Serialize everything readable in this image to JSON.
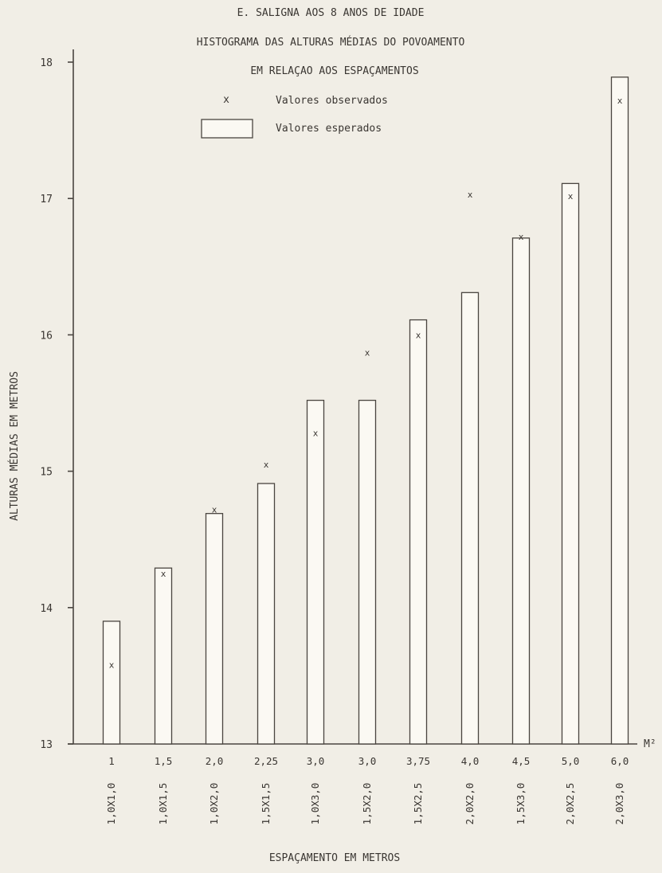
{
  "chart_data": {
    "type": "bar",
    "title_lines": [
      "E. SALIGNA AOS 8 ANOS DE IDADE",
      "HISTOGRAMA DAS ALTURAS MÉDIAS DO POVOAMENTO",
      "EM RELAÇAO AOS ESPAÇAMENTOS"
    ],
    "legend": [
      {
        "symbol": "x",
        "label": "Valores observados"
      },
      {
        "symbol": "box",
        "label": "Valores esperados"
      }
    ],
    "ylabel": "ALTURAS MÉDIAS EM METROS",
    "xlabel": "ESPAÇAMENTO EM METROS",
    "x_unit": "M²",
    "ylim": [
      13,
      18
    ],
    "yticks": [
      "13",
      "14",
      "15",
      "16",
      "17",
      "18"
    ],
    "area_labels": [
      "1",
      "1,5",
      "2,0",
      "2,25",
      "3,0",
      "3,0",
      "3,75",
      "4,0",
      "4,5",
      "5,0",
      "6,0"
    ],
    "spacing_labels": [
      "1,0X1,0",
      "1,0X1,5",
      "1,0X2,0",
      "1,5X1,5",
      "1,0X3,0",
      "1,5X2,0",
      "1,5X2,5",
      "2,0X2,0",
      "1,5X3,0",
      "2,0X2,5",
      "2,0X3,0"
    ],
    "expected": [
      13.9,
      14.29,
      14.69,
      14.91,
      15.52,
      15.52,
      16.11,
      16.31,
      16.71,
      17.11,
      17.89
    ],
    "observed": [
      13.58,
      14.25,
      14.72,
      15.05,
      15.28,
      15.87,
      16.0,
      17.03,
      16.72,
      17.02,
      17.72
    ]
  }
}
